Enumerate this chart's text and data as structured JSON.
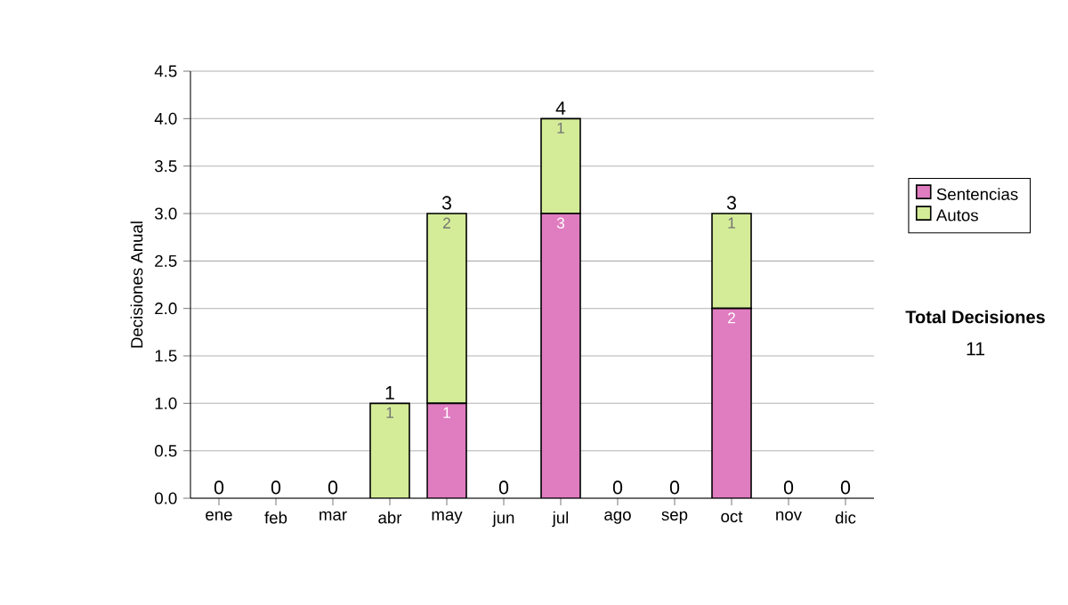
{
  "chart_data": {
    "type": "bar",
    "stacked": true,
    "ylabel": "Decisiones Anual",
    "categories": [
      "ene",
      "feb",
      "mar",
      "abr",
      "may",
      "jun",
      "jul",
      "ago",
      "sep",
      "oct",
      "nov",
      "dic"
    ],
    "series": [
      {
        "name": "Sentencias",
        "color": "#e07cc0",
        "values": [
          0,
          0,
          0,
          0,
          1,
          0,
          3,
          0,
          0,
          2,
          0,
          0
        ],
        "value_labels": [
          null,
          null,
          null,
          null,
          "1",
          null,
          "3",
          null,
          null,
          "2",
          null,
          null
        ]
      },
      {
        "name": "Autos",
        "color": "#d4ec98",
        "values": [
          0,
          0,
          0,
          1,
          2,
          0,
          1,
          0,
          0,
          1,
          0,
          0
        ],
        "value_labels": [
          null,
          null,
          null,
          "1",
          "2",
          null,
          "1",
          null,
          null,
          "1",
          null,
          null
        ]
      }
    ],
    "totals": [
      "0",
      "0",
      "0",
      "1",
      "3",
      "0",
      "4",
      "0",
      "0",
      "3",
      "0",
      "0"
    ],
    "ylim": [
      0,
      4.5
    ],
    "yticks": [
      {
        "value": 0,
        "label": "0.0"
      },
      {
        "value": 0.5,
        "label": "0.5"
      },
      {
        "value": 1,
        "label": "1.0"
      },
      {
        "value": 1.5,
        "label": "1.5"
      },
      {
        "value": 2,
        "label": "2.0"
      },
      {
        "value": 2.5,
        "label": "2.5"
      },
      {
        "value": 3,
        "label": "3.0"
      },
      {
        "value": 3.5,
        "label": "3.5"
      },
      {
        "value": 4,
        "label": "4.0"
      },
      {
        "value": 4.5,
        "label": "4.5"
      }
    ],
    "grid": "y",
    "legend": "right",
    "annotations": [
      "Total Decisiones",
      "11"
    ]
  }
}
